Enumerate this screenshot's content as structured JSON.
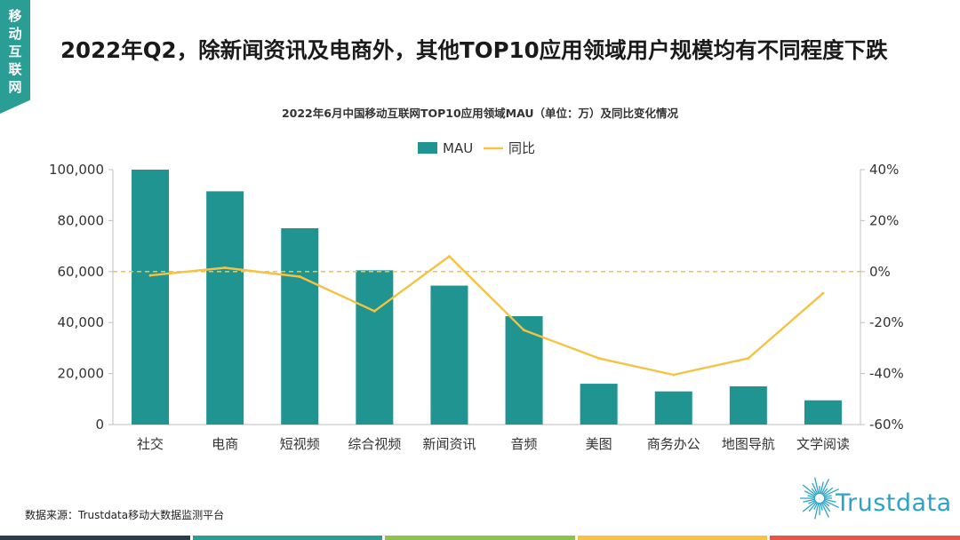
{
  "side_tag": "移动互联网",
  "title": "2022年Q2，除新闻资讯及电商外，其他TOP10应用领域用户规模均有不同程度下跌",
  "chart_data": {
    "type": "bar",
    "title": "2022年6月中国移动互联网TOP10应用领域MAU（单位：万）及同比变化情况",
    "categories": [
      "社交",
      "电商",
      "短视频",
      "综合视频",
      "新闻资讯",
      "音频",
      "美图",
      "商务办公",
      "地图导航",
      "文学阅读"
    ],
    "series": [
      {
        "name": "MAU",
        "type": "bar",
        "axis": "left",
        "color": "#1f9490",
        "values": [
          100000,
          91500,
          77000,
          60500,
          54500,
          42500,
          16000,
          13000,
          15000,
          9500
        ]
      },
      {
        "name": "同比",
        "type": "line",
        "axis": "right",
        "color": "#f5c243",
        "unit": "%",
        "values": [
          -1.5,
          1.5,
          -2,
          -15.5,
          6,
          -23,
          -34,
          -40.5,
          -34,
          -8.5
        ]
      }
    ],
    "left_axis": {
      "ylim": [
        0,
        100000
      ],
      "ticks": [
        "0",
        "20,000",
        "40,000",
        "60,000",
        "80,000",
        "100,000"
      ]
    },
    "right_axis": {
      "ylim": [
        -60,
        40
      ],
      "ticks": [
        "-60%",
        "-40%",
        "-20%",
        "0%",
        "20%",
        "40%"
      ]
    },
    "reference_line": {
      "axis": "right",
      "value": 0,
      "style": "dashed",
      "color": "#f5c243"
    },
    "legend_position": "top-center",
    "grid": false
  },
  "source_label": "数据来源：Trustdata移动大数据监测平台",
  "brand_name": "Trustdata",
  "footer_colors": [
    "#2c3b4a",
    "#2a9d95",
    "#8fc24a",
    "#f5c243",
    "#e8564a"
  ]
}
